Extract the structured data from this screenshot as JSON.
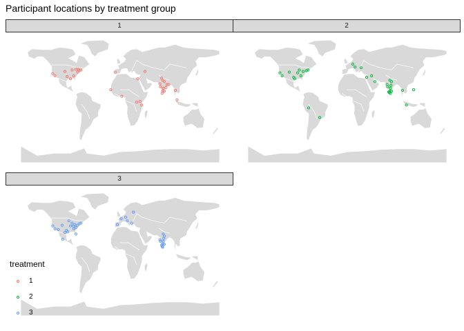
{
  "title": "Participant locations by treatment group",
  "panels": [
    {
      "label": "1",
      "color": "#F8766D",
      "points": [
        [
          -118,
          34
        ],
        [
          -122,
          37
        ],
        [
          -96,
          33
        ],
        [
          -87,
          42
        ],
        [
          -84,
          34
        ],
        [
          -74,
          41
        ],
        [
          -71,
          42
        ],
        [
          -77,
          39
        ],
        [
          -90,
          30
        ],
        [
          -100,
          40
        ],
        [
          -80,
          43
        ],
        [
          -76,
          43
        ],
        [
          -17,
          15
        ],
        [
          3,
          6
        ],
        [
          32,
          30
        ],
        [
          30,
          -2
        ],
        [
          39,
          -6
        ],
        [
          36,
          -1
        ],
        [
          -9,
          39
        ],
        [
          45,
          40
        ],
        [
          73,
          19
        ],
        [
          77,
          13
        ],
        [
          80,
          13
        ],
        [
          78,
          17
        ],
        [
          72,
          23
        ],
        [
          76,
          10
        ],
        [
          77,
          28
        ],
        [
          75,
          31
        ],
        [
          80,
          26
        ],
        [
          85,
          22
        ],
        [
          88,
          22
        ],
        [
          100,
          14
        ],
        [
          103,
          1
        ],
        [
          83,
          18
        ]
      ]
    },
    {
      "label": "2",
      "color": "#00BA38",
      "points": [
        [
          -122,
          38
        ],
        [
          -118,
          34
        ],
        [
          -105,
          39
        ],
        [
          -97,
          32
        ],
        [
          -87,
          42
        ],
        [
          -84,
          34
        ],
        [
          -80,
          40
        ],
        [
          -74,
          41
        ],
        [
          -71,
          42
        ],
        [
          -95,
          30
        ],
        [
          -90,
          38
        ],
        [
          -70,
          -10
        ],
        [
          -50,
          -23
        ],
        [
          10,
          50
        ],
        [
          14,
          46
        ],
        [
          25,
          45
        ],
        [
          35,
          32
        ],
        [
          44,
          34
        ],
        [
          50,
          26
        ],
        [
          73,
          19
        ],
        [
          77,
          13
        ],
        [
          78,
          17
        ],
        [
          79,
          21
        ],
        [
          75,
          12
        ],
        [
          77,
          28
        ],
        [
          80,
          13
        ],
        [
          78,
          10
        ],
        [
          76,
          11
        ],
        [
          72,
          22
        ],
        [
          80,
          26
        ],
        [
          100,
          14
        ],
        [
          107,
          -6
        ],
        [
          120,
          15
        ]
      ]
    },
    {
      "label": "3",
      "color": "#619CFF",
      "points": [
        [
          -122,
          38
        ],
        [
          -118,
          34
        ],
        [
          -112,
          33
        ],
        [
          -105,
          39
        ],
        [
          -97,
          32
        ],
        [
          -95,
          30
        ],
        [
          -90,
          38
        ],
        [
          -87,
          42
        ],
        [
          -84,
          34
        ],
        [
          -80,
          27
        ],
        [
          -77,
          39
        ],
        [
          -74,
          41
        ],
        [
          -71,
          42
        ],
        [
          -85,
          38
        ],
        [
          -100,
          29
        ],
        [
          -80,
          36
        ],
        [
          -82,
          40
        ],
        [
          -93,
          45
        ],
        [
          -104,
          20
        ],
        [
          -5,
          40
        ],
        [
          2,
          48
        ],
        [
          10,
          50
        ],
        [
          13,
          45
        ],
        [
          21,
          42
        ],
        [
          24,
          57
        ],
        [
          72,
          19
        ],
        [
          73,
          17
        ],
        [
          77,
          13
        ],
        [
          78,
          17
        ],
        [
          79,
          21
        ],
        [
          80,
          13
        ],
        [
          75,
          12
        ],
        [
          76,
          10
        ],
        [
          77,
          9
        ],
        [
          78,
          27
        ],
        [
          80,
          24
        ]
      ]
    }
  ],
  "legend": {
    "title": "treatment",
    "items": [
      {
        "label": "1",
        "color": "#F8766D"
      },
      {
        "label": "2",
        "color": "#00BA38"
      },
      {
        "label": "3",
        "color": "#619CFF"
      }
    ]
  }
}
